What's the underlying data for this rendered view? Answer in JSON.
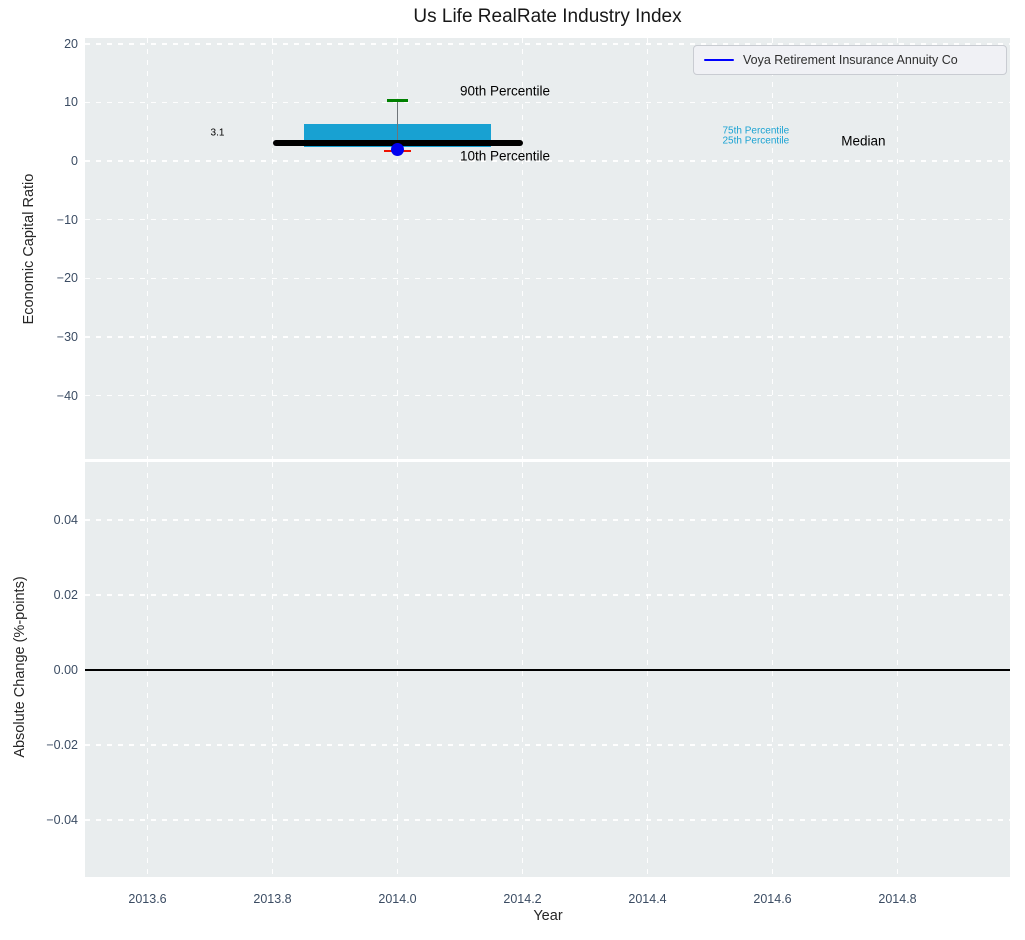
{
  "title": "Us Life RealRate Industry Index",
  "legend": {
    "label": "Voya Retirement Insurance Annuity Co",
    "line_color": "#0000ff",
    "position": "upper right"
  },
  "colors": {
    "plot_background": "#e9edee",
    "grid": "#ffffff",
    "tick_label": "#3b4c63",
    "box_fill": "#18a1d2",
    "median_line": "#000000",
    "whisker_line": "#6f7579",
    "p90_cap": "#008000",
    "p10_cap": "#ee1100",
    "company_marker": "#0000ee",
    "percentile_label_blue": "#1ba3d3",
    "zero_line": "#000000"
  },
  "chart_data": [
    {
      "type": "bar",
      "note": "industry percentile box with median line and company marker",
      "title": "Us Life RealRate Industry Index",
      "ylabel": "Economic Capital Ratio",
      "xlabel": "Year",
      "xlim": [
        2013.5,
        2014.98
      ],
      "ylim": [
        -50.8,
        21.0
      ],
      "grid": "white dashed, on",
      "legend_position": "upper right",
      "xticks": [
        2013.6,
        2013.8,
        2014.0,
        2014.2,
        2014.4,
        2014.6,
        2014.8
      ],
      "xtick_labels": [
        "2013.6",
        "2013.8",
        "2014.0",
        "2014.2",
        "2014.4",
        "2014.6",
        "2014.8"
      ],
      "yticks": [
        20,
        10,
        0,
        -10,
        -20,
        -30,
        -40
      ],
      "ytick_labels": [
        "20",
        "10",
        "0",
        "−10",
        "−20",
        "−30",
        "−40"
      ],
      "box": {
        "x": 2014.0,
        "p90": 10.3,
        "p75": 6.3,
        "median": 3.1,
        "p25": 2.4,
        "p10": 1.7,
        "box_halfwidth": 0.15,
        "median_halfwidth": 0.2,
        "p90_cap_halfwidth": 0.017,
        "p10_cap_halfwidth": 0.022
      },
      "series": [
        {
          "name": "Voya Retirement Insurance Annuity Co",
          "x": [
            2014.0
          ],
          "y": [
            2.0
          ],
          "marker": "circle"
        }
      ],
      "annotations": [
        {
          "text": "90th Percentile",
          "x": 2014.1,
          "y": 12.0,
          "size": "lg",
          "color": "#000000",
          "anchor": "left"
        },
        {
          "text": "10th Percentile",
          "x": 2014.1,
          "y": 0.9,
          "size": "lg",
          "color": "#000000",
          "anchor": "left"
        },
        {
          "text": "75th Percentile",
          "x": 2014.52,
          "y": 5.2,
          "size": "sm",
          "color": "#1ba3d3",
          "anchor": "left"
        },
        {
          "text": "25th Percentile",
          "x": 2014.52,
          "y": 3.5,
          "size": "sm",
          "color": "#1ba3d3",
          "anchor": "left"
        },
        {
          "text": "Median",
          "x": 2014.71,
          "y": 3.5,
          "size": "lg",
          "color": "#000000",
          "anchor": "left"
        },
        {
          "text": "3.1",
          "x": 2013.712,
          "y": 4.8,
          "size": "sm",
          "color": "#000000",
          "anchor": "center"
        }
      ]
    },
    {
      "type": "line",
      "note": "absolute change panel, flat zero reference line only",
      "ylabel": "Absolute Change (%-points)",
      "xlabel": "Year",
      "xlim": [
        2013.5,
        2014.98
      ],
      "ylim": [
        -0.0552,
        0.0555
      ],
      "grid": "white dashed, on",
      "xticks": [
        2013.6,
        2013.8,
        2014.0,
        2014.2,
        2014.4,
        2014.6,
        2014.8
      ],
      "xtick_labels": [
        "2013.6",
        "2013.8",
        "2014.0",
        "2014.2",
        "2014.4",
        "2014.6",
        "2014.8"
      ],
      "yticks": [
        0.04,
        0.02,
        0.0,
        -0.02,
        -0.04
      ],
      "ytick_labels": [
        "0.04",
        "0.02",
        "0.00",
        "−0.02",
        "−0.04"
      ],
      "zero_line_y": 0.0
    }
  ]
}
